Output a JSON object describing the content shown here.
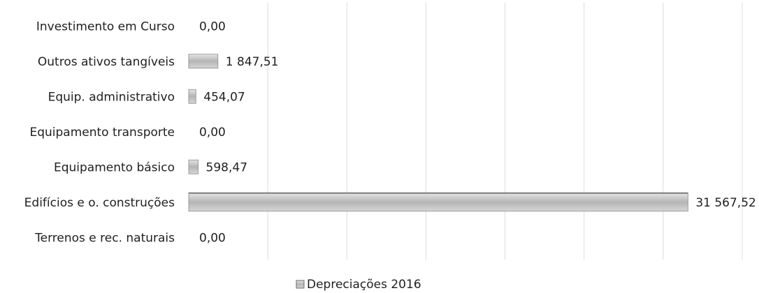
{
  "chart_data": {
    "type": "bar",
    "orientation": "horizontal",
    "categories": [
      "Investimento em Curso",
      "Outros ativos tangíveis",
      "Equip. administrativo",
      "Equipamento transporte",
      "Equipamento básico",
      "Edifícios e o. construções",
      "Terrenos e rec. naturais"
    ],
    "series": [
      {
        "name": "Depreciações 2016",
        "values": [
          0.0,
          1847.51,
          454.07,
          0.0,
          598.47,
          31567.52,
          0.0
        ],
        "labels": [
          "0,00",
          "1 847,51",
          "454,07",
          "0,00",
          "598,47",
          "31 567,52",
          "0,00"
        ],
        "color": "#b9b9b9"
      }
    ],
    "xlim": [
      0,
      35000
    ],
    "x_gridlines": [
      0,
      5000,
      10000,
      15000,
      20000,
      25000,
      30000,
      35000
    ],
    "grid": true,
    "show_x_tick_labels": false,
    "legend": {
      "position": "bottom",
      "entries": [
        "Depreciações 2016"
      ]
    }
  }
}
